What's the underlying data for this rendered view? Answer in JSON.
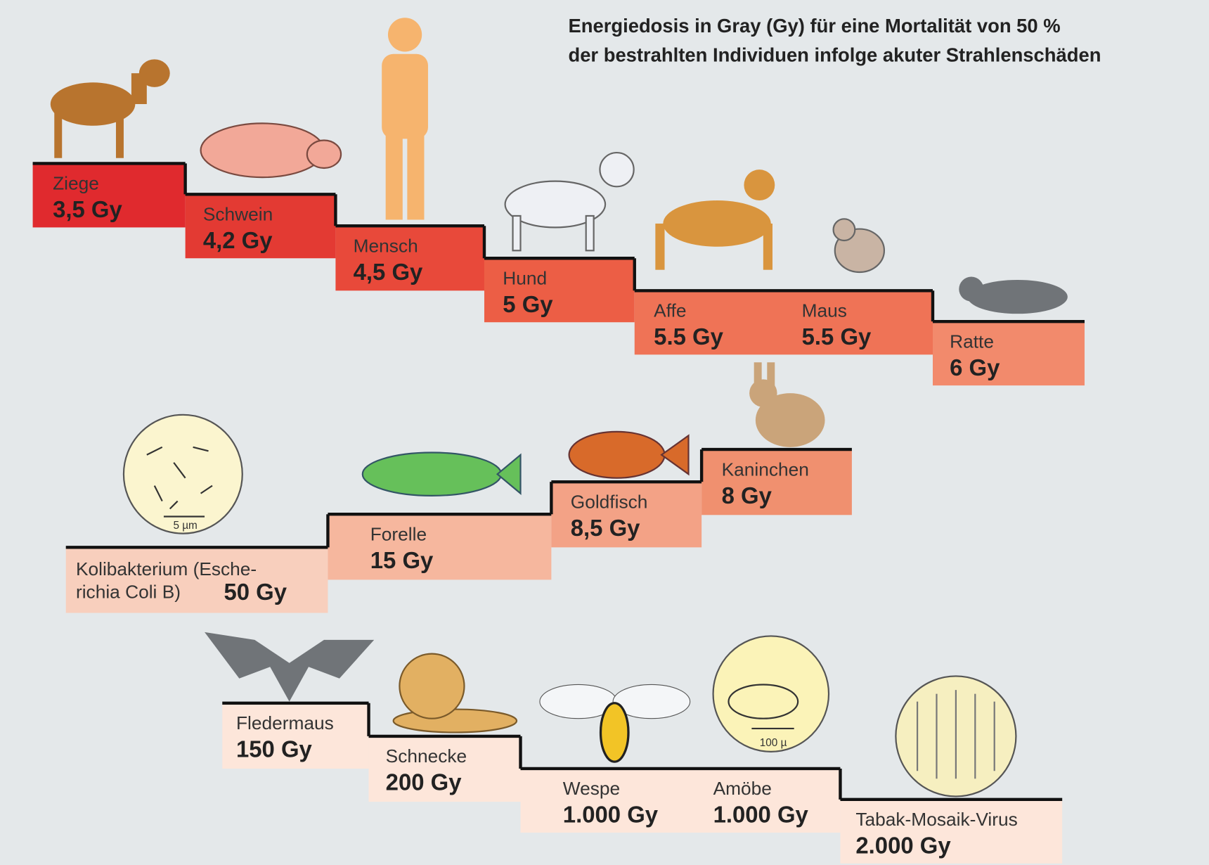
{
  "title": {
    "lines": [
      "Energiedosis in Gray (Gy) für eine Mortalität von 50 %",
      "der bestrahlten Individuen infolge akuter Strahlenschäden"
    ]
  },
  "steps": [
    {
      "entries": [
        {
          "name": "Ziege",
          "dose": "3,5 Gy"
        }
      ]
    },
    {
      "entries": [
        {
          "name": "Schwein",
          "dose": "4,2 Gy"
        }
      ]
    },
    {
      "entries": [
        {
          "name": "Mensch",
          "dose": "4,5 Gy"
        }
      ]
    },
    {
      "entries": [
        {
          "name": "Hund",
          "dose": "5 Gy"
        }
      ]
    },
    {
      "entries": [
        {
          "name": "Affe",
          "dose": "5.5 Gy"
        },
        {
          "name": "Maus",
          "dose": "5.5 Gy"
        }
      ]
    },
    {
      "entries": [
        {
          "name": "Ratte",
          "dose": "6 Gy"
        }
      ]
    },
    {
      "entries": [
        {
          "name": [
            "Kolibakterium (Esche-",
            "richia Coli B)"
          ],
          "dose": "50 Gy"
        }
      ]
    },
    {
      "entries": [
        {
          "name": "Forelle",
          "dose": "15 Gy"
        }
      ]
    },
    {
      "entries": [
        {
          "name": "Goldfisch",
          "dose": "8,5 Gy"
        }
      ]
    },
    {
      "entries": [
        {
          "name": "Kaninchen",
          "dose": "8 Gy"
        }
      ]
    },
    {
      "entries": [
        {
          "name": "Fledermaus",
          "dose": "150 Gy"
        }
      ]
    },
    {
      "entries": [
        {
          "name": "Schnecke",
          "dose": "200 Gy"
        }
      ]
    },
    {
      "entries": [
        {
          "name": "Wespe",
          "dose": "1.000 Gy"
        },
        {
          "name": "Amöbe",
          "dose": "1.000 Gy"
        }
      ]
    },
    {
      "entries": [
        {
          "name": "Tabak-Mosaik-Virus",
          "dose": "2.000 Gy"
        }
      ]
    }
  ],
  "icon_labels": [
    "5 µm",
    "100 µ"
  ]
}
